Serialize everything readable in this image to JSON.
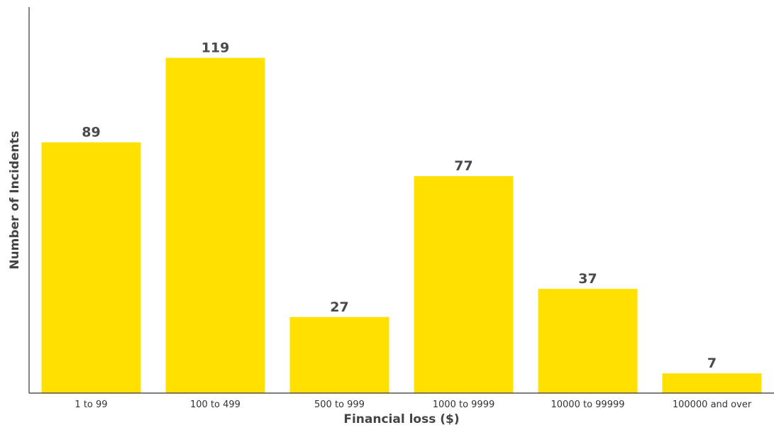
{
  "chart_data": {
    "type": "bar",
    "categories": [
      "1 to 99",
      "100 to 499",
      "500 to 999",
      "1000 to 9999",
      "10000 to 99999",
      "100000 and over"
    ],
    "series": [
      {
        "values": [
          89,
          119,
          27,
          77,
          37,
          7
        ]
      }
    ],
    "data_labels": [
      "89",
      "119",
      "27",
      "77",
      "37",
      "7"
    ],
    "xlabel": "Financial loss ($)",
    "ylabel": "Number of Incidents",
    "ylim": [
      0,
      137
    ],
    "grid": false,
    "legend": "none",
    "colors": {
      "bar": "#FFE000",
      "axis": "#333333",
      "text": "#4a4a4a"
    }
  }
}
